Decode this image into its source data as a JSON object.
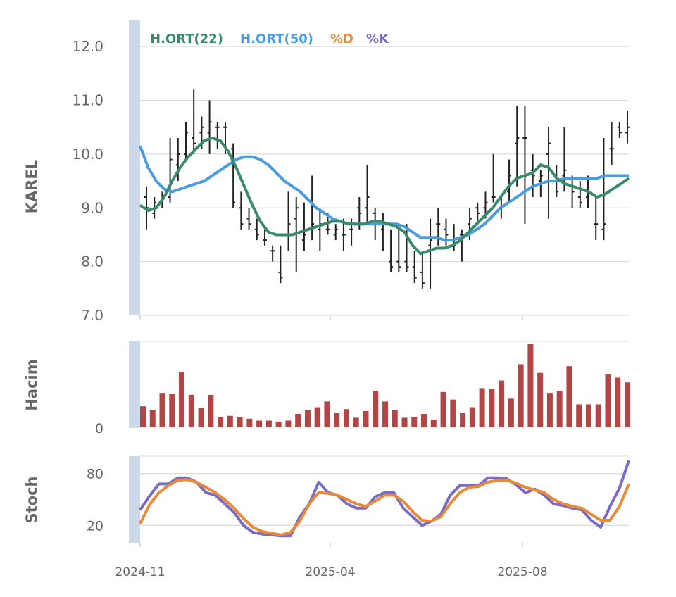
{
  "chart_data": [
    {
      "type": "ohlc",
      "panel": "price",
      "ylabel": "KAREL",
      "ylim": [
        7.0,
        12.5
      ],
      "yticks": [
        "7.0",
        "8.0",
        "9.0",
        "10.0",
        "11.0",
        "12.0"
      ],
      "grid": true,
      "legend_position": "top-left",
      "legend": [
        {
          "label": "H.ORT(22)",
          "color": "#3a8a6e"
        },
        {
          "label": "H.ORT(50)",
          "color": "#4a9be0"
        },
        {
          "label": "%D",
          "color": "#e58b3a"
        },
        {
          "label": "%K",
          "color": "#7b6bc2"
        }
      ],
      "bar_color": "#222222",
      "ohlc": [
        [
          9.2,
          9.4,
          8.6,
          9.0
        ],
        [
          8.9,
          9.2,
          8.8,
          9.1
        ],
        [
          9.1,
          9.3,
          9.0,
          9.2
        ],
        [
          9.2,
          10.3,
          9.1,
          9.9
        ],
        [
          9.8,
          10.3,
          9.5,
          10.0
        ],
        [
          10.0,
          10.6,
          9.9,
          10.4
        ],
        [
          10.3,
          11.2,
          10.0,
          10.2
        ],
        [
          10.4,
          10.7,
          10.1,
          10.5
        ],
        [
          10.4,
          11.0,
          10.0,
          10.6
        ],
        [
          10.5,
          10.6,
          10.1,
          10.5
        ],
        [
          10.5,
          10.6,
          10.0,
          10.5
        ],
        [
          10.1,
          10.2,
          9.0,
          9.1
        ],
        [
          9.0,
          9.3,
          8.6,
          8.7
        ],
        [
          8.8,
          9.0,
          8.6,
          8.7
        ],
        [
          8.6,
          8.8,
          8.4,
          8.5
        ],
        [
          8.4,
          8.6,
          8.3,
          8.4
        ],
        [
          8.2,
          8.3,
          8.0,
          8.2
        ],
        [
          7.8,
          8.3,
          7.6,
          7.7
        ],
        [
          8.5,
          9.3,
          8.2,
          8.7
        ],
        [
          8.8,
          9.2,
          7.8,
          9.0
        ],
        [
          8.4,
          9.1,
          8.2,
          8.5
        ],
        [
          8.6,
          9.6,
          8.4,
          8.7
        ],
        [
          8.6,
          9.0,
          8.2,
          8.7
        ],
        [
          8.6,
          8.9,
          8.5,
          8.6
        ],
        [
          8.5,
          8.7,
          8.4,
          8.6
        ],
        [
          8.5,
          8.8,
          8.2,
          8.5
        ],
        [
          8.6,
          8.8,
          8.3,
          8.6
        ],
        [
          9.0,
          9.2,
          8.6,
          8.9
        ],
        [
          9.0,
          9.8,
          8.7,
          9.2
        ],
        [
          8.9,
          9.0,
          8.4,
          8.7
        ],
        [
          8.6,
          8.9,
          8.2,
          8.7
        ],
        [
          8.0,
          8.6,
          7.8,
          7.9
        ],
        [
          8.0,
          8.6,
          7.8,
          7.9
        ],
        [
          8.0,
          8.7,
          7.8,
          7.9
        ],
        [
          7.9,
          8.2,
          7.6,
          7.7
        ],
        [
          7.8,
          8.2,
          7.5,
          7.6
        ],
        [
          8.3,
          8.8,
          7.5,
          8.4
        ],
        [
          8.7,
          9.0,
          8.3,
          8.7
        ],
        [
          8.6,
          8.8,
          8.3,
          8.5
        ],
        [
          8.4,
          8.7,
          8.2,
          8.3
        ],
        [
          8.5,
          8.6,
          8.0,
          8.5
        ],
        [
          8.7,
          9.0,
          8.4,
          8.8
        ],
        [
          9.0,
          9.1,
          8.7,
          8.9
        ],
        [
          9.0,
          9.3,
          8.8,
          9.1
        ],
        [
          9.2,
          10.0,
          9.1,
          9.2
        ],
        [
          9.0,
          9.2,
          8.8,
          9.0
        ],
        [
          9.3,
          9.9,
          9.1,
          9.6
        ],
        [
          10.2,
          10.9,
          9.4,
          10.3
        ],
        [
          10.3,
          10.9,
          8.7,
          10.3
        ],
        [
          9.7,
          10.0,
          9.2,
          9.6
        ],
        [
          9.5,
          9.7,
          9.2,
          9.6
        ],
        [
          10.0,
          10.5,
          8.8,
          10.2
        ],
        [
          9.5,
          9.8,
          9.2,
          9.3
        ],
        [
          9.6,
          10.5,
          9.3,
          9.7
        ],
        [
          9.4,
          9.6,
          9.0,
          9.3
        ],
        [
          9.2,
          9.5,
          9.0,
          9.1
        ],
        [
          9.2,
          9.6,
          9.0,
          9.3
        ],
        [
          8.7,
          9.2,
          8.4,
          8.7
        ],
        [
          8.6,
          10.3,
          8.4,
          8.7
        ],
        [
          10.1,
          10.6,
          9.8,
          10.1
        ],
        [
          10.5,
          10.6,
          10.3,
          10.4
        ],
        [
          10.4,
          10.8,
          10.2,
          10.5
        ]
      ],
      "series": [
        {
          "name": "H.ORT(22)",
          "color": "#3a8a6e",
          "values": [
            9.05,
            8.95,
            9.0,
            9.2,
            9.5,
            9.75,
            9.95,
            10.1,
            10.25,
            10.3,
            10.25,
            10.05,
            9.75,
            9.4,
            9.05,
            8.75,
            8.55,
            8.5,
            8.5,
            8.5,
            8.55,
            8.6,
            8.65,
            8.7,
            8.75,
            8.75,
            8.7,
            8.7,
            8.7,
            8.75,
            8.75,
            8.7,
            8.65,
            8.55,
            8.3,
            8.15,
            8.2,
            8.25,
            8.25,
            8.3,
            8.4,
            8.55,
            8.7,
            8.85,
            9.0,
            9.2,
            9.4,
            9.55,
            9.6,
            9.65,
            9.8,
            9.75,
            9.55,
            9.45,
            9.4,
            9.35,
            9.3,
            9.2,
            9.25,
            9.35,
            9.45,
            9.55
          ]
        },
        {
          "name": "H.ORT(50)",
          "color": "#4a9be0",
          "values": [
            10.15,
            9.75,
            9.5,
            9.35,
            9.3,
            9.35,
            9.4,
            9.45,
            9.5,
            9.6,
            9.7,
            9.8,
            9.9,
            9.95,
            9.95,
            9.9,
            9.8,
            9.65,
            9.5,
            9.4,
            9.3,
            9.15,
            9.0,
            8.9,
            8.8,
            8.75,
            8.7,
            8.7,
            8.7,
            8.7,
            8.7,
            8.7,
            8.7,
            8.65,
            8.55,
            8.45,
            8.45,
            8.45,
            8.4,
            8.4,
            8.45,
            8.5,
            8.6,
            8.7,
            8.85,
            9.0,
            9.1,
            9.2,
            9.3,
            9.4,
            9.45,
            9.5,
            9.5,
            9.55,
            9.55,
            9.55,
            9.55,
            9.55,
            9.6,
            9.6,
            9.6,
            9.6
          ]
        }
      ]
    },
    {
      "type": "bar",
      "panel": "volume",
      "ylabel": "Hacim",
      "yticks": [
        "0"
      ],
      "bar_color": "#b24545",
      "values": [
        22,
        18,
        36,
        35,
        58,
        34,
        20,
        34,
        11,
        12,
        11,
        9,
        7,
        7,
        6,
        7,
        14,
        18,
        21,
        27,
        15,
        19,
        10,
        17,
        38,
        27,
        18,
        10,
        11,
        14,
        8,
        37,
        29,
        15,
        21,
        41,
        40,
        49,
        30,
        66,
        87,
        57,
        36,
        38,
        64,
        24,
        24,
        24,
        56,
        52,
        47
      ]
    },
    {
      "type": "line",
      "panel": "stochastic",
      "ylabel": "Stoch",
      "ylim": [
        0,
        100
      ],
      "yticks": [
        "20",
        "80"
      ],
      "x_tick_labels": [
        "2024-11",
        "2025-04",
        "2025-08"
      ],
      "series": [
        {
          "name": "%K",
          "color": "#7b6bc2",
          "values": [
            38,
            54,
            68,
            68,
            75,
            75,
            70,
            58,
            55,
            45,
            35,
            20,
            12,
            10,
            9,
            8,
            8,
            30,
            45,
            70,
            58,
            55,
            45,
            40,
            40,
            53,
            58,
            58,
            40,
            30,
            20,
            25,
            33,
            55,
            66,
            66,
            66,
            75,
            75,
            74,
            67,
            58,
            62,
            55,
            45,
            43,
            40,
            38,
            26,
            18,
            42,
            63,
            95
          ]
        },
        {
          "name": "%D",
          "color": "#e58b3a",
          "values": [
            22,
            44,
            58,
            66,
            72,
            73,
            70,
            64,
            58,
            50,
            40,
            28,
            18,
            13,
            11,
            9,
            12,
            25,
            45,
            58,
            57,
            55,
            50,
            45,
            42,
            48,
            55,
            55,
            48,
            36,
            26,
            25,
            30,
            45,
            58,
            64,
            65,
            70,
            72,
            72,
            69,
            64,
            61,
            58,
            50,
            45,
            42,
            40,
            33,
            26,
            26,
            42,
            68
          ]
        }
      ]
    }
  ]
}
